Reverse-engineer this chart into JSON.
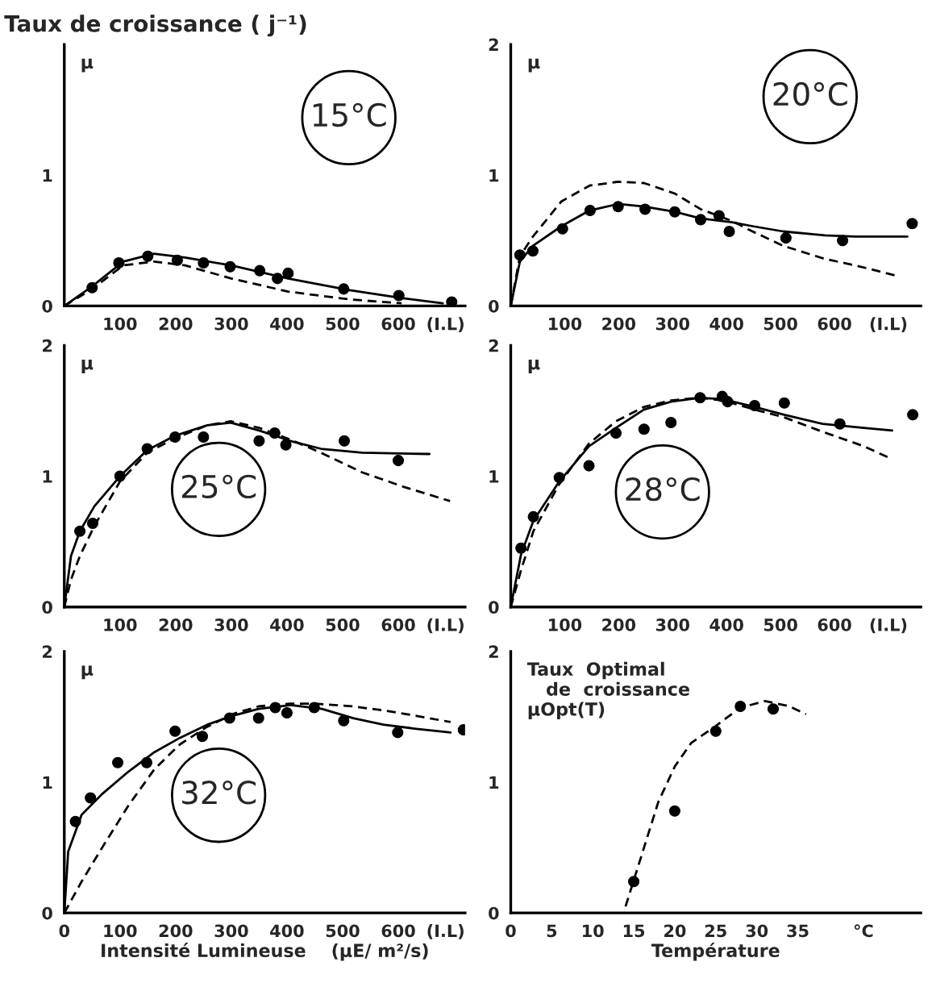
{
  "chart_data": [
    {
      "type": "line",
      "title": "15°C",
      "ylabel": "µ",
      "annotations": [
        "Taux de croissance ( j⁻¹)"
      ],
      "xlim": [
        0,
        720
      ],
      "ylim": [
        0,
        2
      ],
      "xticks": [
        100,
        200,
        300,
        400,
        500,
        600,
        {
          "value": 685,
          "label": "(I.L)"
        }
      ],
      "yticks": [
        0,
        1
      ],
      "series": [
        {
          "type": "scatter",
          "marker": "circle",
          "color": "#000000",
          "x": [
            50,
            98,
            150,
            203,
            250,
            298,
            351,
            383,
            402,
            502,
            601,
            696
          ],
          "values": [
            0.14,
            0.33,
            0.38,
            0.35,
            0.33,
            0.3,
            0.27,
            0.21,
            0.25,
            0.13,
            0.08,
            0.03
          ]
        },
        {
          "line_style": "solid",
          "color": "#000000",
          "x": [
            0,
            50,
            106,
            161,
            217,
            300,
            402,
            513,
            606,
            680
          ],
          "values": [
            0,
            0.15,
            0.34,
            0.4,
            0.37,
            0.31,
            0.21,
            0.12,
            0.06,
            0.02
          ]
        },
        {
          "line_style": "dashed",
          "color": "#000000",
          "x": [
            0,
            50,
            106,
            161,
            217,
            300,
            402,
            513,
            606
          ],
          "values": [
            0,
            0.13,
            0.31,
            0.34,
            0.31,
            0.21,
            0.11,
            0.05,
            0.02
          ]
        }
      ]
    },
    {
      "type": "line",
      "title": "20°C",
      "ylabel": "µ",
      "xlim": [
        0,
        760
      ],
      "ylim": [
        0,
        2
      ],
      "xticks": [
        100,
        200,
        300,
        400,
        500,
        600,
        {
          "value": 700,
          "label": "(I.L)"
        }
      ],
      "yticks": [
        0,
        1,
        2
      ],
      "series": [
        {
          "type": "scatter",
          "marker": "circle",
          "color": "#000000",
          "x": [
            17,
            41,
            96,
            147,
            199,
            249,
            304,
            352,
            386,
            405,
            510,
            615,
            744
          ],
          "values": [
            0.39,
            0.42,
            0.59,
            0.73,
            0.76,
            0.74,
            0.72,
            0.66,
            0.69,
            0.57,
            0.52,
            0.5,
            0.63
          ]
        },
        {
          "line_style": "solid",
          "color": "#000000",
          "x": [
            0,
            17,
            41,
            94,
            146,
            199,
            247,
            304,
            352,
            410,
            448,
            505,
            582,
            639,
            735
          ],
          "values": [
            0,
            0.34,
            0.46,
            0.61,
            0.73,
            0.78,
            0.76,
            0.72,
            0.67,
            0.64,
            0.61,
            0.57,
            0.54,
            0.53,
            0.53
          ]
        },
        {
          "line_style": "dashed",
          "color": "#000000",
          "x": [
            0,
            17,
            41,
            94,
            146,
            199,
            247,
            304,
            352,
            410,
            448,
            505,
            582,
            639,
            716
          ],
          "values": [
            0,
            0.38,
            0.53,
            0.8,
            0.92,
            0.95,
            0.94,
            0.86,
            0.74,
            0.65,
            0.57,
            0.46,
            0.36,
            0.31,
            0.23
          ]
        }
      ]
    },
    {
      "type": "line",
      "title": "25°C",
      "ylabel": "µ",
      "xlim": [
        0,
        720
      ],
      "ylim": [
        0,
        2
      ],
      "xticks": [
        100,
        200,
        300,
        400,
        500,
        600,
        {
          "value": 685,
          "label": "(I.L)"
        }
      ],
      "yticks": [
        0,
        1,
        2
      ],
      "series": [
        {
          "type": "scatter",
          "marker": "circle",
          "color": "#000000",
          "x": [
            28,
            51,
            100,
            149,
            199,
            250,
            350,
            378,
            398,
            503,
            600
          ],
          "values": [
            0.58,
            0.64,
            1.0,
            1.21,
            1.3,
            1.3,
            1.27,
            1.33,
            1.24,
            1.27,
            1.12
          ]
        },
        {
          "line_style": "solid",
          "color": "#000000",
          "x": [
            0,
            12,
            28,
            54,
            100,
            149,
            199,
            257,
            299,
            350,
            406,
            461,
            535,
            656
          ],
          "values": [
            0,
            0.39,
            0.58,
            0.77,
            1.0,
            1.2,
            1.31,
            1.39,
            1.41,
            1.35,
            1.27,
            1.21,
            1.18,
            1.17
          ]
        },
        {
          "line_style": "dashed",
          "color": "#000000",
          "x": [
            0,
            12,
            28,
            54,
            100,
            149,
            199,
            257,
            299,
            350,
            406,
            461,
            535,
            609,
            693
          ],
          "values": [
            0,
            0.21,
            0.39,
            0.62,
            0.96,
            1.18,
            1.29,
            1.39,
            1.42,
            1.37,
            1.28,
            1.18,
            1.03,
            0.92,
            0.81
          ]
        }
      ]
    },
    {
      "type": "line",
      "title": "28°C",
      "ylabel": "µ",
      "xlim": [
        0,
        760
      ],
      "ylim": [
        0,
        2
      ],
      "xticks": [
        100,
        200,
        300,
        400,
        500,
        600,
        {
          "value": 700,
          "label": "(I.L)"
        }
      ],
      "yticks": [
        0,
        1,
        2
      ],
      "series": [
        {
          "type": "scatter",
          "marker": "circle",
          "color": "#000000",
          "x": [
            19,
            42,
            90,
            145,
            195,
            247,
            297,
            351,
            392,
            402,
            452,
            507,
            610,
            745
          ],
          "values": [
            0.45,
            0.69,
            0.99,
            1.08,
            1.33,
            1.36,
            1.41,
            1.6,
            1.61,
            1.57,
            1.54,
            1.56,
            1.4,
            1.47
          ]
        },
        {
          "line_style": "solid",
          "color": "#000000",
          "x": [
            0,
            19,
            42,
            90,
            145,
            195,
            247,
            297,
            350,
            392,
            452,
            507,
            578,
            654,
            707
          ],
          "values": [
            0,
            0.4,
            0.66,
            0.96,
            1.23,
            1.37,
            1.51,
            1.57,
            1.6,
            1.59,
            1.53,
            1.47,
            1.4,
            1.37,
            1.35
          ]
        },
        {
          "line_style": "dashed",
          "color": "#000000",
          "x": [
            0,
            19,
            42,
            90,
            145,
            195,
            247,
            297,
            350,
            392,
            452,
            507,
            578,
            654,
            707
          ],
          "values": [
            0,
            0.28,
            0.58,
            0.94,
            1.25,
            1.42,
            1.53,
            1.58,
            1.6,
            1.58,
            1.51,
            1.45,
            1.34,
            1.23,
            1.13
          ]
        }
      ]
    },
    {
      "type": "line",
      "title": "32°C",
      "ylabel": "µ",
      "xlabel": "Intensité Lumineuse    (µE/ m²/s)",
      "xlim": [
        0,
        720
      ],
      "ylim": [
        0,
        2
      ],
      "xticks": [
        0,
        100,
        200,
        300,
        400,
        500,
        600,
        {
          "value": 685,
          "label": "(I.L)"
        }
      ],
      "yticks": [
        0,
        1,
        2
      ],
      "series": [
        {
          "type": "scatter",
          "marker": "circle",
          "color": "#000000",
          "x": [
            20,
            47,
            96,
            148,
            199,
            248,
            297,
            349,
            379,
            400,
            449,
            502,
            599,
            717
          ],
          "values": [
            0.7,
            0.88,
            1.15,
            1.15,
            1.39,
            1.35,
            1.49,
            1.49,
            1.57,
            1.53,
            1.57,
            1.47,
            1.38,
            1.4
          ]
        },
        {
          "line_style": "solid",
          "color": "#000000",
          "x": [
            0,
            7,
            31,
            68,
            115,
            162,
            208,
            257,
            304,
            349,
            407,
            463,
            519,
            573,
            629,
            694
          ],
          "values": [
            0,
            0.47,
            0.75,
            0.91,
            1.08,
            1.23,
            1.34,
            1.44,
            1.51,
            1.56,
            1.59,
            1.56,
            1.49,
            1.44,
            1.41,
            1.38
          ]
        },
        {
          "line_style": "dashed",
          "color": "#000000",
          "x": [
            0,
            31,
            68,
            115,
            162,
            208,
            255,
            302,
            349,
            405,
            451,
            517,
            573,
            629,
            694
          ],
          "values": [
            0,
            0.24,
            0.5,
            0.82,
            1.1,
            1.29,
            1.42,
            1.52,
            1.58,
            1.6,
            1.6,
            1.58,
            1.55,
            1.51,
            1.46
          ]
        }
      ]
    },
    {
      "type": "line",
      "ylabel": "Taux  Optimal\n   de  croissance\nµOpt(T)",
      "xlabel": "Température",
      "xlim": [
        0,
        50
      ],
      "ylim": [
        0,
        2
      ],
      "xticks": [
        0,
        5,
        10,
        15,
        20,
        25,
        30,
        35,
        {
          "value": 43,
          "label": "°C"
        }
      ],
      "yticks": [
        0,
        1,
        2
      ],
      "series": [
        {
          "type": "scatter",
          "marker": "circle",
          "color": "#000000",
          "x": [
            15,
            20,
            25,
            28,
            32
          ],
          "values": [
            0.24,
            0.78,
            1.39,
            1.58,
            1.56
          ]
        },
        {
          "line_style": "dashed",
          "color": "#000000",
          "x": [
            14,
            16,
            18,
            20,
            22,
            25,
            28,
            31,
            34,
            36
          ],
          "values": [
            0.05,
            0.45,
            0.85,
            1.12,
            1.3,
            1.43,
            1.57,
            1.62,
            1.58,
            1.52
          ]
        }
      ]
    }
  ]
}
